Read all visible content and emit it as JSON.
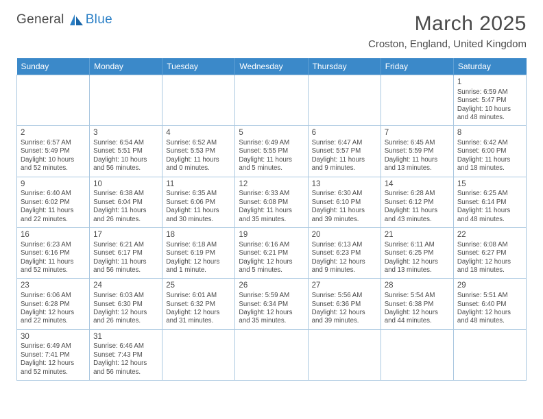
{
  "logo": {
    "part1": "General",
    "part2": "Blue"
  },
  "title": "March 2025",
  "location": "Croston, England, United Kingdom",
  "colors": {
    "header_bg": "#3b89c9",
    "header_text": "#ffffff",
    "cell_border": "#a9c7e0",
    "text": "#4a4a4a",
    "logo_blue": "#2a7fc6"
  },
  "weekdays": [
    "Sunday",
    "Monday",
    "Tuesday",
    "Wednesday",
    "Thursday",
    "Friday",
    "Saturday"
  ],
  "weeks": [
    [
      null,
      null,
      null,
      null,
      null,
      null,
      {
        "d": "1",
        "sr": "Sunrise: 6:59 AM",
        "ss": "Sunset: 5:47 PM",
        "dl1": "Daylight: 10 hours",
        "dl2": "and 48 minutes."
      }
    ],
    [
      {
        "d": "2",
        "sr": "Sunrise: 6:57 AM",
        "ss": "Sunset: 5:49 PM",
        "dl1": "Daylight: 10 hours",
        "dl2": "and 52 minutes."
      },
      {
        "d": "3",
        "sr": "Sunrise: 6:54 AM",
        "ss": "Sunset: 5:51 PM",
        "dl1": "Daylight: 10 hours",
        "dl2": "and 56 minutes."
      },
      {
        "d": "4",
        "sr": "Sunrise: 6:52 AM",
        "ss": "Sunset: 5:53 PM",
        "dl1": "Daylight: 11 hours",
        "dl2": "and 0 minutes."
      },
      {
        "d": "5",
        "sr": "Sunrise: 6:49 AM",
        "ss": "Sunset: 5:55 PM",
        "dl1": "Daylight: 11 hours",
        "dl2": "and 5 minutes."
      },
      {
        "d": "6",
        "sr": "Sunrise: 6:47 AM",
        "ss": "Sunset: 5:57 PM",
        "dl1": "Daylight: 11 hours",
        "dl2": "and 9 minutes."
      },
      {
        "d": "7",
        "sr": "Sunrise: 6:45 AM",
        "ss": "Sunset: 5:59 PM",
        "dl1": "Daylight: 11 hours",
        "dl2": "and 13 minutes."
      },
      {
        "d": "8",
        "sr": "Sunrise: 6:42 AM",
        "ss": "Sunset: 6:00 PM",
        "dl1": "Daylight: 11 hours",
        "dl2": "and 18 minutes."
      }
    ],
    [
      {
        "d": "9",
        "sr": "Sunrise: 6:40 AM",
        "ss": "Sunset: 6:02 PM",
        "dl1": "Daylight: 11 hours",
        "dl2": "and 22 minutes."
      },
      {
        "d": "10",
        "sr": "Sunrise: 6:38 AM",
        "ss": "Sunset: 6:04 PM",
        "dl1": "Daylight: 11 hours",
        "dl2": "and 26 minutes."
      },
      {
        "d": "11",
        "sr": "Sunrise: 6:35 AM",
        "ss": "Sunset: 6:06 PM",
        "dl1": "Daylight: 11 hours",
        "dl2": "and 30 minutes."
      },
      {
        "d": "12",
        "sr": "Sunrise: 6:33 AM",
        "ss": "Sunset: 6:08 PM",
        "dl1": "Daylight: 11 hours",
        "dl2": "and 35 minutes."
      },
      {
        "d": "13",
        "sr": "Sunrise: 6:30 AM",
        "ss": "Sunset: 6:10 PM",
        "dl1": "Daylight: 11 hours",
        "dl2": "and 39 minutes."
      },
      {
        "d": "14",
        "sr": "Sunrise: 6:28 AM",
        "ss": "Sunset: 6:12 PM",
        "dl1": "Daylight: 11 hours",
        "dl2": "and 43 minutes."
      },
      {
        "d": "15",
        "sr": "Sunrise: 6:25 AM",
        "ss": "Sunset: 6:14 PM",
        "dl1": "Daylight: 11 hours",
        "dl2": "and 48 minutes."
      }
    ],
    [
      {
        "d": "16",
        "sr": "Sunrise: 6:23 AM",
        "ss": "Sunset: 6:16 PM",
        "dl1": "Daylight: 11 hours",
        "dl2": "and 52 minutes."
      },
      {
        "d": "17",
        "sr": "Sunrise: 6:21 AM",
        "ss": "Sunset: 6:17 PM",
        "dl1": "Daylight: 11 hours",
        "dl2": "and 56 minutes."
      },
      {
        "d": "18",
        "sr": "Sunrise: 6:18 AM",
        "ss": "Sunset: 6:19 PM",
        "dl1": "Daylight: 12 hours",
        "dl2": "and 1 minute."
      },
      {
        "d": "19",
        "sr": "Sunrise: 6:16 AM",
        "ss": "Sunset: 6:21 PM",
        "dl1": "Daylight: 12 hours",
        "dl2": "and 5 minutes."
      },
      {
        "d": "20",
        "sr": "Sunrise: 6:13 AM",
        "ss": "Sunset: 6:23 PM",
        "dl1": "Daylight: 12 hours",
        "dl2": "and 9 minutes."
      },
      {
        "d": "21",
        "sr": "Sunrise: 6:11 AM",
        "ss": "Sunset: 6:25 PM",
        "dl1": "Daylight: 12 hours",
        "dl2": "and 13 minutes."
      },
      {
        "d": "22",
        "sr": "Sunrise: 6:08 AM",
        "ss": "Sunset: 6:27 PM",
        "dl1": "Daylight: 12 hours",
        "dl2": "and 18 minutes."
      }
    ],
    [
      {
        "d": "23",
        "sr": "Sunrise: 6:06 AM",
        "ss": "Sunset: 6:28 PM",
        "dl1": "Daylight: 12 hours",
        "dl2": "and 22 minutes."
      },
      {
        "d": "24",
        "sr": "Sunrise: 6:03 AM",
        "ss": "Sunset: 6:30 PM",
        "dl1": "Daylight: 12 hours",
        "dl2": "and 26 minutes."
      },
      {
        "d": "25",
        "sr": "Sunrise: 6:01 AM",
        "ss": "Sunset: 6:32 PM",
        "dl1": "Daylight: 12 hours",
        "dl2": "and 31 minutes."
      },
      {
        "d": "26",
        "sr": "Sunrise: 5:59 AM",
        "ss": "Sunset: 6:34 PM",
        "dl1": "Daylight: 12 hours",
        "dl2": "and 35 minutes."
      },
      {
        "d": "27",
        "sr": "Sunrise: 5:56 AM",
        "ss": "Sunset: 6:36 PM",
        "dl1": "Daylight: 12 hours",
        "dl2": "and 39 minutes."
      },
      {
        "d": "28",
        "sr": "Sunrise: 5:54 AM",
        "ss": "Sunset: 6:38 PM",
        "dl1": "Daylight: 12 hours",
        "dl2": "and 44 minutes."
      },
      {
        "d": "29",
        "sr": "Sunrise: 5:51 AM",
        "ss": "Sunset: 6:40 PM",
        "dl1": "Daylight: 12 hours",
        "dl2": "and 48 minutes."
      }
    ],
    [
      {
        "d": "30",
        "sr": "Sunrise: 6:49 AM",
        "ss": "Sunset: 7:41 PM",
        "dl1": "Daylight: 12 hours",
        "dl2": "and 52 minutes."
      },
      {
        "d": "31",
        "sr": "Sunrise: 6:46 AM",
        "ss": "Sunset: 7:43 PM",
        "dl1": "Daylight: 12 hours",
        "dl2": "and 56 minutes."
      },
      null,
      null,
      null,
      null,
      null
    ]
  ]
}
